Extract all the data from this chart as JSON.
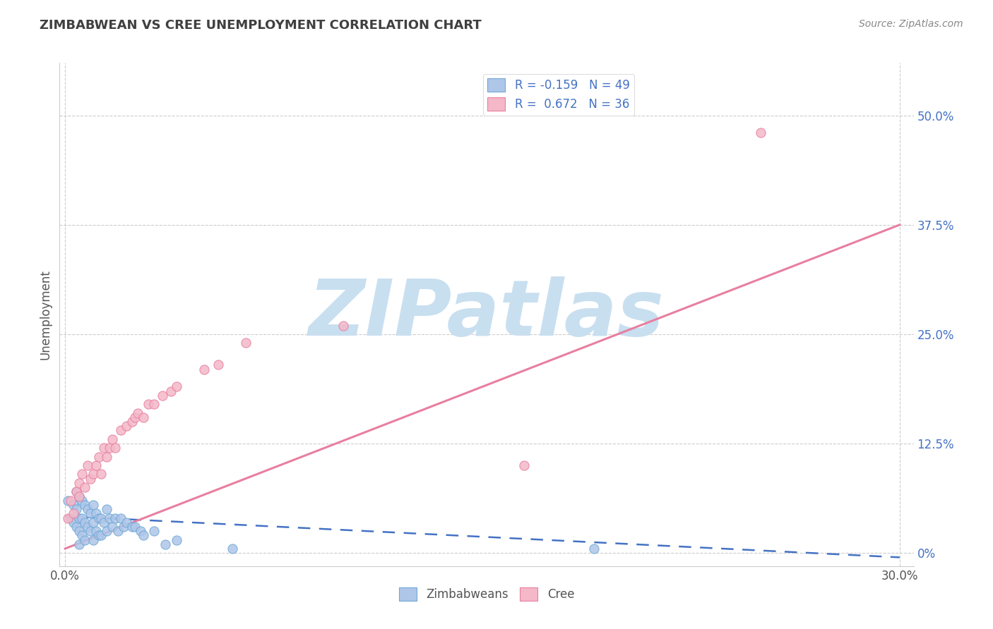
{
  "title": "ZIMBABWEAN VS CREE UNEMPLOYMENT CORRELATION CHART",
  "source_text": "Source: ZipAtlas.com",
  "ylabel": "Unemployment",
  "xlim": [
    -0.002,
    0.305
  ],
  "ylim": [
    -0.015,
    0.56
  ],
  "x_tick_vals": [
    0.0,
    0.3
  ],
  "x_tick_labels": [
    "0.0%",
    "30.0%"
  ],
  "y_tick_vals": [
    0.0,
    0.125,
    0.25,
    0.375,
    0.5
  ],
  "y_right_labels": [
    "0%",
    "12.5%",
    "25.0%",
    "37.5%",
    "50.0%"
  ],
  "legend_entries": [
    {
      "label": "R = -0.159   N = 49",
      "color": "#aec6e8",
      "edge_color": "#6fa8d6"
    },
    {
      "label": "R =  0.672   N = 36",
      "color": "#f4b8c8",
      "edge_color": "#e87fa0"
    }
  ],
  "zimbabwean_color": "#aec6e8",
  "zimbabwean_edge": "#6fa8d6",
  "cree_color": "#f4b8c8",
  "cree_edge": "#e87fa0",
  "blue_line_color": "#4472c4",
  "pink_line_color": "#e87fa0",
  "grid_color": "#cccccc",
  "background_color": "#ffffff",
  "watermark_text": "ZIPatlas",
  "watermark_color": "#c8dff0",
  "title_color": "#404040",
  "source_color": "#888888",
  "legend_text_color": "#4472c4",
  "bottom_legend_labels": [
    "Zimbabweans",
    "Cree"
  ],
  "blue_line_x": [
    0.0,
    0.3
  ],
  "blue_line_y": [
    0.042,
    -0.005
  ],
  "pink_line_x": [
    0.0,
    0.3
  ],
  "pink_line_y": [
    0.005,
    0.375
  ],
  "zimbabwean_x": [
    0.001,
    0.002,
    0.003,
    0.003,
    0.004,
    0.004,
    0.004,
    0.005,
    0.005,
    0.005,
    0.005,
    0.006,
    0.006,
    0.006,
    0.007,
    0.007,
    0.007,
    0.008,
    0.008,
    0.009,
    0.009,
    0.01,
    0.01,
    0.01,
    0.011,
    0.011,
    0.012,
    0.012,
    0.013,
    0.013,
    0.014,
    0.015,
    0.015,
    0.016,
    0.017,
    0.018,
    0.019,
    0.02,
    0.021,
    0.022,
    0.024,
    0.025,
    0.027,
    0.028,
    0.032,
    0.036,
    0.04,
    0.06,
    0.19
  ],
  "zimbabwean_y": [
    0.06,
    0.04,
    0.055,
    0.035,
    0.07,
    0.05,
    0.03,
    0.065,
    0.04,
    0.025,
    0.01,
    0.06,
    0.04,
    0.02,
    0.055,
    0.035,
    0.015,
    0.05,
    0.03,
    0.045,
    0.025,
    0.055,
    0.035,
    0.015,
    0.045,
    0.025,
    0.04,
    0.02,
    0.04,
    0.02,
    0.035,
    0.05,
    0.025,
    0.04,
    0.03,
    0.04,
    0.025,
    0.04,
    0.03,
    0.035,
    0.03,
    0.03,
    0.025,
    0.02,
    0.025,
    0.01,
    0.015,
    0.005,
    0.005
  ],
  "cree_x": [
    0.001,
    0.002,
    0.003,
    0.004,
    0.005,
    0.005,
    0.006,
    0.007,
    0.008,
    0.009,
    0.01,
    0.011,
    0.012,
    0.013,
    0.014,
    0.015,
    0.016,
    0.017,
    0.018,
    0.02,
    0.022,
    0.024,
    0.025,
    0.026,
    0.028,
    0.03,
    0.032,
    0.035,
    0.038,
    0.04,
    0.05,
    0.055,
    0.065,
    0.1,
    0.165,
    0.25
  ],
  "cree_y": [
    0.04,
    0.06,
    0.045,
    0.07,
    0.065,
    0.08,
    0.09,
    0.075,
    0.1,
    0.085,
    0.09,
    0.1,
    0.11,
    0.09,
    0.12,
    0.11,
    0.12,
    0.13,
    0.12,
    0.14,
    0.145,
    0.15,
    0.155,
    0.16,
    0.155,
    0.17,
    0.17,
    0.18,
    0.185,
    0.19,
    0.21,
    0.215,
    0.24,
    0.26,
    0.1,
    0.48
  ]
}
